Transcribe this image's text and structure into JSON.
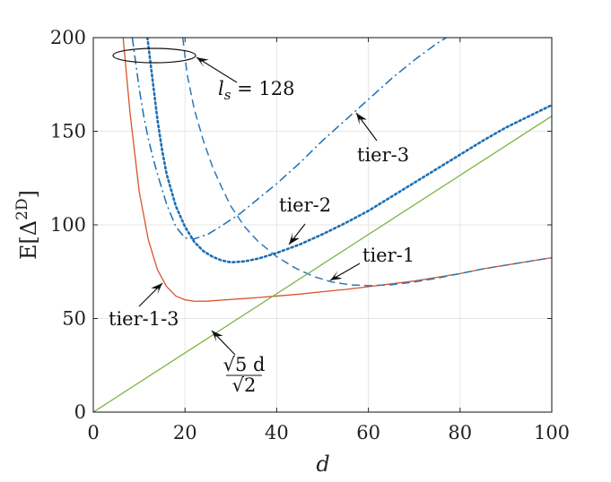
{
  "chart_data": {
    "type": "line",
    "xlabel": "d",
    "ylabel": "E[Δ2D]",
    "xlim": [
      0,
      100
    ],
    "ylim": [
      0,
      200
    ],
    "xticks": [
      0,
      20,
      40,
      60,
      80,
      100
    ],
    "yticks": [
      0,
      50,
      100,
      150,
      200
    ],
    "grid": true,
    "series": [
      {
        "id": "tier13",
        "color": "#d9532b",
        "style": "solid",
        "x": [
          6.5,
          8,
          10,
          12,
          14,
          16,
          18,
          20,
          22,
          25,
          28,
          32,
          36,
          40,
          45,
          50,
          55,
          60,
          65,
          70,
          75,
          80,
          85,
          90,
          95,
          100
        ],
        "y": [
          200,
          160,
          118,
          92,
          76,
          67,
          62,
          60,
          59.2,
          59.3,
          59.8,
          60.5,
          61.2,
          62,
          63,
          64.3,
          65.5,
          67,
          68.5,
          70,
          72,
          74,
          76.5,
          78.5,
          80.5,
          82.5
        ]
      },
      {
        "id": "tier1",
        "color": "#2f78b5",
        "style": "dashed",
        "x": [
          19.5,
          20.5,
          22,
          24,
          26,
          28,
          30,
          33,
          36,
          40,
          44,
          48,
          52,
          56,
          60,
          65,
          70,
          75,
          80,
          85,
          90,
          95,
          100
        ],
        "y": [
          200,
          180,
          162,
          145,
          131,
          120,
          110,
          99,
          91,
          83,
          77,
          72.5,
          69.5,
          68,
          67.5,
          68,
          69.5,
          71.5,
          74,
          76.5,
          78.5,
          80.5,
          82.5
        ]
      },
      {
        "id": "tier2",
        "color": "#1a6fb5",
        "style": "dotted",
        "x": [
          11.8,
          13,
          14,
          15,
          16,
          18,
          20,
          22,
          24,
          26,
          28,
          30,
          33,
          36,
          40,
          45,
          50,
          55,
          60,
          65,
          70,
          75,
          80,
          85,
          90,
          95,
          100
        ],
        "y": [
          200,
          176,
          156,
          140,
          127,
          110,
          99,
          91,
          86,
          83,
          81,
          80,
          80.5,
          82,
          85,
          89.5,
          95,
          101,
          107.5,
          115,
          122.5,
          130,
          137.5,
          145,
          152,
          158,
          164
        ]
      },
      {
        "id": "tier3",
        "color": "#1a6fb5",
        "style": "dashdot",
        "x": [
          8.5,
          10,
          11,
          12,
          13,
          14,
          15,
          16,
          18,
          20,
          22,
          25,
          28,
          32,
          36,
          40,
          45,
          50,
          55,
          60,
          65,
          70,
          75,
          77
        ],
        "y": [
          200,
          173,
          158,
          146,
          136,
          127,
          119,
          111,
          99,
          93,
          92.5,
          95,
          99.5,
          106,
          114,
          122,
          133,
          145,
          156,
          167,
          178,
          188,
          197,
          200
        ]
      },
      {
        "id": "linear",
        "color": "#7cb342",
        "style": "solid",
        "x": [
          0,
          100
        ],
        "y": [
          0,
          158.1
        ]
      }
    ],
    "annotations": {
      "ls_label": "l_s = 128",
      "ls_label_sub": "s",
      "ls_label_rest": " = 128",
      "tier3_label": "tier-3",
      "tier2_label": "tier-2",
      "tier1_label": "tier-1",
      "tier13_label": "tier-1-3",
      "formula_num": "√5 d",
      "formula_den": "√2"
    }
  }
}
